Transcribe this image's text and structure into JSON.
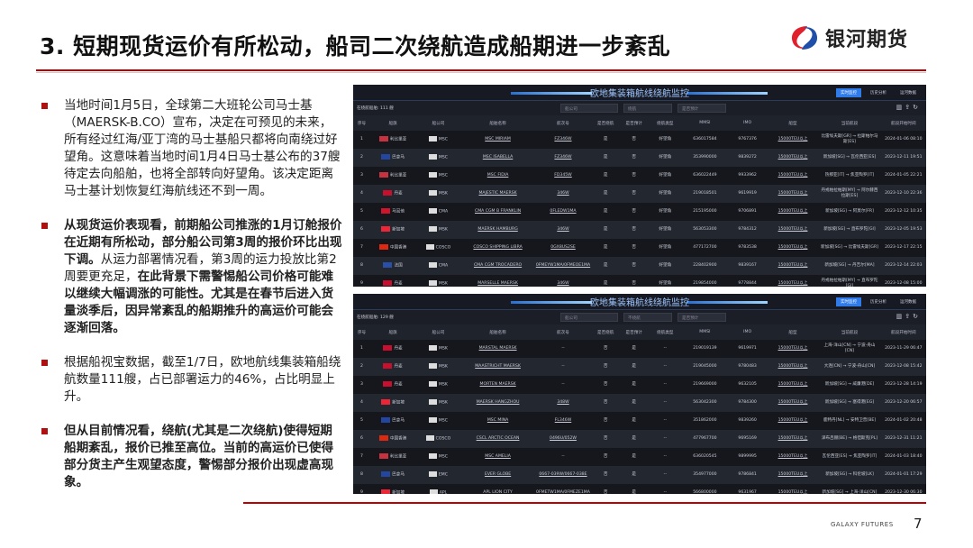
{
  "title": "3. 短期现货运价有所松动，船司二次绕航造成船期进一步紊乱",
  "logo": {
    "text": "银河期货",
    "colors": {
      "red": "#e0202a",
      "blue": "#1f4fa8"
    }
  },
  "bullets": [
    {
      "parts": [
        {
          "t": "当地时间1月5日，全球第二大班轮公司马士基（MAERSK-B.CO）宣布，决定在可预见的未来，所有经过红海/亚丁湾的马士基船只都将向南绕过好望角。这意味着当地时间1月4日马士基公布的37艘待定去向船舶，也将全部转向好望角。该决定距离马士基计划恢复红海航线还不到一周。",
          "b": false
        }
      ]
    },
    {
      "parts": [
        {
          "t": "从现货运价表现看，前期船公司推涨的1月订舱报价在近期有所松动，部分船公司第3周的报价环比出现下调。",
          "b": true
        },
        {
          "t": "从运力部署情况看，第3周的运力投放比第2周要更充足，",
          "b": false
        },
        {
          "t": "在此背景下需警惕船公司价格可能难以继续大幅调涨的可能性。尤其是在春节后进入货量淡季后，因异常紊乱的船期推升的高运价可能会逐渐回落。",
          "b": true
        }
      ]
    },
    {
      "parts": [
        {
          "t": "根据船视宝数据，截至1/7日，欧地航线集装箱船绕航数量111艘，占已部署运力的46%，占比明显上升。",
          "b": false
        }
      ]
    },
    {
      "parts": [
        {
          "t": "但从目前情况看，绕航(尤其是二次绕航)使得短期船期紊乱，报价已推至高位。当前的高运价已使得部分货主产生观望态度，警惕部分报价出现虚高现象。",
          "b": true
        }
      ]
    }
  ],
  "columns": [
    "序号",
    "船旗",
    "船公司",
    "船舶名称",
    "航次号",
    "是否绕航",
    "是否预计",
    "绕航类型",
    "MMSI",
    "IMO",
    "船型",
    "当前航段",
    "航段开始时间"
  ],
  "panels": [
    {
      "title": "欧地集装箱航线绕航监控",
      "buttons": [
        "实时监控",
        "历史分析",
        "运河数据"
      ],
      "count": "在绕航船舶: 111 艘",
      "filters": [
        "船公司",
        "绕航",
        "是否预计"
      ],
      "rows": [
        [
          "1",
          "利比里亚",
          "MSC",
          "MSC MIRIAM",
          "FZ346W",
          "是",
          "否",
          "好望角",
          "636017584",
          "9767376",
          "15000TEU以上",
          "比雷埃夫斯[GR] → 拉斯帕尔马斯[ES]",
          "2024-01-06 08:10"
        ],
        [
          "2",
          "巴拿马",
          "MSC",
          "MSC ISABELLA",
          "FZ346W",
          "是",
          "否",
          "好望角",
          "353990000",
          "9839272",
          "15000TEU以上",
          "新加坡[SG] → 瓦伦西亚[ES]",
          "2023-12-11 19:51"
        ],
        [
          "3",
          "利比里亚",
          "MSC",
          "MSC FIDIA",
          "FD345W",
          "是",
          "否",
          "好望角",
          "636022449",
          "9933962",
          "15000TEU以上",
          "热那亚[IT] → 焦亚陶罗[IT]",
          "2024-01-05 22:21"
        ],
        [
          "4",
          "丹麦",
          "MSK",
          "MAJESTIC MAERSK",
          "346W",
          "是",
          "否",
          "好望角",
          "219018501",
          "9619919",
          "15000TEU以上",
          "丹戎帕拉帕斯[MY] → 阿尔赫西拉斯[ES]",
          "2023-12-10 22:36"
        ],
        [
          "5",
          "马耳他",
          "CMA",
          "CMA CGM B FRANKLIN",
          "0FLEDW1MA",
          "是",
          "否",
          "好望角",
          "215195000",
          "9706891",
          "15000TEU以上",
          "新加坡[SG] → 阿莫尔[FR]",
          "2023-12-12 10:35"
        ],
        [
          "6",
          "新加坡",
          "MSK",
          "MAERSK HAMBURG",
          "346W",
          "是",
          "否",
          "好望角",
          "563053300",
          "9784312",
          "15000TEU以上",
          "新加坡[SG] → 直布罗陀[GI]",
          "2023-12-05 19:53"
        ],
        [
          "7",
          "中国香港",
          "COSCO",
          "COSCO SHIPPING LIBRA",
          "0GX8US2SE",
          "是",
          "否",
          "好望角",
          "477172700",
          "9783538",
          "15000TEU以上",
          "新加坡[SG] → 比雷埃夫斯[GR]",
          "2023-12-17 22:15"
        ],
        [
          "8",
          "法国",
          "CMA",
          "CMA CGM TROCADERO",
          "0FMEYW1MA/0FMEOE1MA",
          "是",
          "否",
          "好望角",
          "228402900",
          "9839167",
          "15000TEU以上",
          "新加坡[SG] → 丹吉尔[MA]",
          "2023-12-14 22:03"
        ],
        [
          "9",
          "丹麦",
          "MSK",
          "MARSELLE MAERSK",
          "346W",
          "是",
          "否",
          "好望角",
          "219854000",
          "9778844",
          "15000TEU以上",
          "丹戎帕拉帕斯[MY] → 直布罗陀[GI]",
          "2023-12-08 15:00"
        ]
      ]
    },
    {
      "title": "欧地集装箱航线绕航监控",
      "buttons": [
        "实时监控",
        "历史分析",
        "运河数据"
      ],
      "count": "在绕航船舶: 129 艘",
      "filters": [
        "船公司",
        "不绕航",
        "是否预计"
      ],
      "rows": [
        [
          "1",
          "丹麦",
          "MSK",
          "MARSTAL MAERSK",
          "--",
          "否",
          "是",
          "--",
          "219019139",
          "9619971",
          "15000TEU以上",
          "上海-洋山[CN] → 宁波-舟山[CN]",
          "2023-11-29 06:47"
        ],
        [
          "2",
          "丹麦",
          "MSK",
          "MAASTRICHT MAERSK",
          "--",
          "否",
          "是",
          "--",
          "219045000",
          "9780483",
          "15000TEU以上",
          "大连[CN] → 宁波-舟山[CN]",
          "2023-12-08 15:42"
        ],
        [
          "3",
          "丹麦",
          "MSK",
          "MORTEN MAERSK",
          "--",
          "否",
          "是",
          "--",
          "219669000",
          "9632105",
          "15000TEU以上",
          "新加坡[SG] → 威廉港[DE]",
          "2023-12-28 14:19"
        ],
        [
          "4",
          "新加坡",
          "MSK",
          "MAERSK HANGZHOU",
          "348W",
          "否",
          "是",
          "--",
          "563042300",
          "9784300",
          "15000TEU以上",
          "新加坡[SG] → 塞得港[EG]",
          "2023-12-20 06:57"
        ],
        [
          "5",
          "巴拿马",
          "MSC",
          "MSC MINA",
          "FL346W",
          "否",
          "是",
          "--",
          "351862000",
          "9839260",
          "15000TEU以上",
          "鹿特丹[NL] → 安特卫普[BE]",
          "2024-01-02 20:48"
        ],
        [
          "6",
          "中国香港",
          "COSCO",
          "CSCL ARCTIC OCEAN",
          "0496U/052W",
          "否",
          "是",
          "--",
          "477967700",
          "9695169",
          "15000TEU以上",
          "泽布吕赫[BE] → 格但斯克[PL]",
          "2023-12-31 11:21"
        ],
        [
          "7",
          "利比里亚",
          "MSC",
          "MSC AMELIA",
          "--",
          "否",
          "是",
          "--",
          "636020545",
          "9899995",
          "15000TEU以上",
          "瓦伦西亚[ES] → 焦亚陶罗[IT]",
          "2024-01-03 18:40"
        ],
        [
          "8",
          "巴拿马",
          "EMC",
          "EVER GLOBE",
          "0667-039W/0667-038E",
          "否",
          "是",
          "--",
          "354977000",
          "9786841",
          "15000TEU以上",
          "新加坡[SG] → 科伦坡[LK]",
          "2024-01-01 17:29"
        ],
        [
          "9",
          "新加坡",
          "APL",
          "APL LION CITY",
          "0FMETW1MA/0FMEZE1MA",
          "否",
          "是",
          "--",
          "566800000",
          "9631967",
          "15000TEU以上",
          "新加坡[SG] → 上海-洋山[CN]",
          "2023-12-30 06:30"
        ]
      ]
    }
  ],
  "footer": {
    "brand": "GALAXY FUTURES",
    "page": "7"
  }
}
